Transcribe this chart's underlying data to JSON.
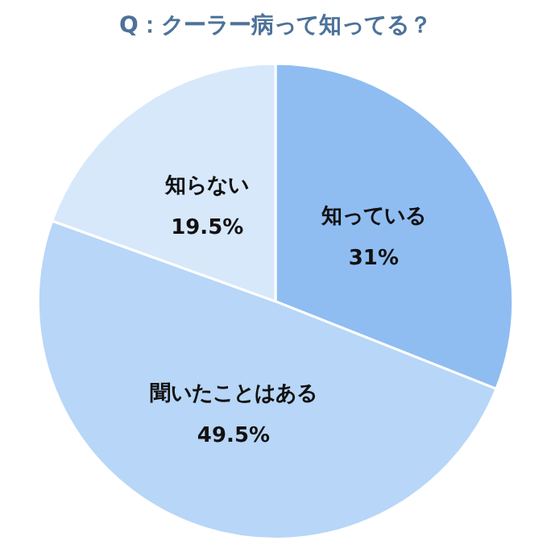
{
  "chart_data": {
    "type": "pie",
    "title": "Q：クーラー病って知ってる？",
    "categories": [
      "知っている",
      "聞いたことはある",
      "知らない"
    ],
    "values": [
      31,
      49.5,
      19.5
    ],
    "value_labels": [
      "31%",
      "49.5%",
      "19.5%"
    ],
    "colors": [
      "#8fbdf2",
      "#b8d6f7",
      "#d7e8fb"
    ],
    "legend": false
  }
}
